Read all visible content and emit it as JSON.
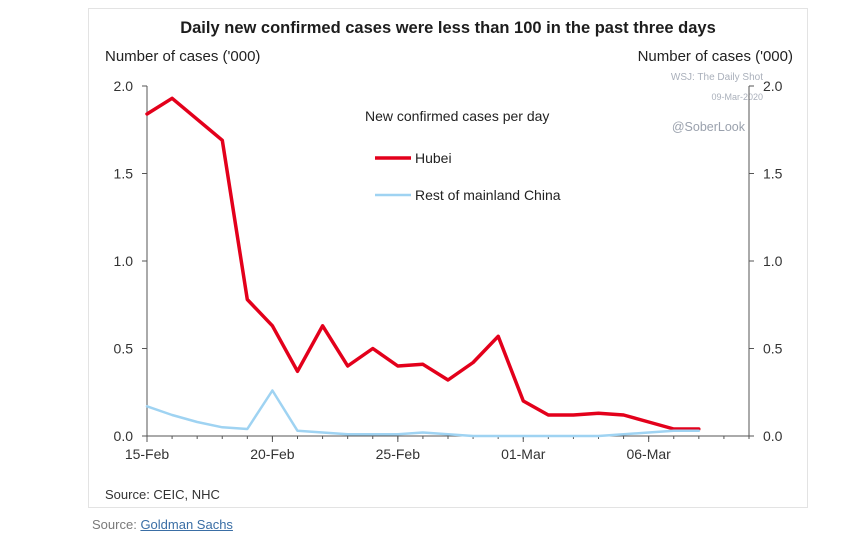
{
  "footer": {
    "prefix": "Source:",
    "link": "Goldman Sachs"
  },
  "figure": {
    "watermark_line1": "WSJ: The Daily Shot",
    "watermark_line2": "09-Mar-2020",
    "handle": "@SoberLook",
    "source": "Source: CEIC, NHC"
  },
  "chart_data": {
    "type": "line",
    "title": "Daily new confirmed cases were less than 100 in the past three days",
    "ylabel_left": "Number of cases ('000)",
    "ylabel_right": "Number of cases ('000)",
    "legend_title": "New confirmed cases per day",
    "ylim": [
      0,
      2.0
    ],
    "yticks": [
      "0.0",
      "0.5",
      "1.0",
      "1.5",
      "2.0"
    ],
    "x_ticks": [
      {
        "label": "15-Feb",
        "day": 0
      },
      {
        "label": "20-Feb",
        "day": 5
      },
      {
        "label": "25-Feb",
        "day": 10
      },
      {
        "label": "01-Mar",
        "day": 15
      },
      {
        "label": "06-Mar",
        "day": 20
      }
    ],
    "series": [
      {
        "name": "Hubei",
        "color": "#e3001b",
        "points": [
          [
            0,
            1.84
          ],
          [
            1,
            1.93
          ],
          [
            2,
            1.81
          ],
          [
            3,
            1.69
          ],
          [
            4,
            0.78
          ],
          [
            5,
            0.63
          ],
          [
            6,
            0.37
          ],
          [
            7,
            0.63
          ],
          [
            8,
            0.4
          ],
          [
            9,
            0.5
          ],
          [
            10,
            0.4
          ],
          [
            11,
            0.41
          ],
          [
            12,
            0.32
          ],
          [
            13,
            0.42
          ],
          [
            14,
            0.57
          ],
          [
            15,
            0.2
          ],
          [
            16,
            0.12
          ],
          [
            17,
            0.12
          ],
          [
            18,
            0.13
          ],
          [
            19,
            0.12
          ],
          [
            20,
            0.08
          ],
          [
            21,
            0.04
          ],
          [
            22,
            0.04
          ]
        ]
      },
      {
        "name": "Rest of mainland China",
        "color": "#9fd3f2",
        "points": [
          [
            0,
            0.17
          ],
          [
            1,
            0.12
          ],
          [
            2,
            0.08
          ],
          [
            3,
            0.05
          ],
          [
            4,
            0.04
          ],
          [
            5,
            0.26
          ],
          [
            6,
            0.03
          ],
          [
            7,
            0.02
          ],
          [
            8,
            0.01
          ],
          [
            9,
            0.01
          ],
          [
            10,
            0.01
          ],
          [
            11,
            0.02
          ],
          [
            12,
            0.01
          ],
          [
            13,
            0.0
          ],
          [
            14,
            0.0
          ],
          [
            15,
            0.0
          ],
          [
            16,
            0.0
          ],
          [
            17,
            0.0
          ],
          [
            18,
            0.0
          ],
          [
            19,
            0.01
          ],
          [
            20,
            0.02
          ],
          [
            21,
            0.03
          ],
          [
            22,
            0.03
          ]
        ]
      }
    ]
  }
}
